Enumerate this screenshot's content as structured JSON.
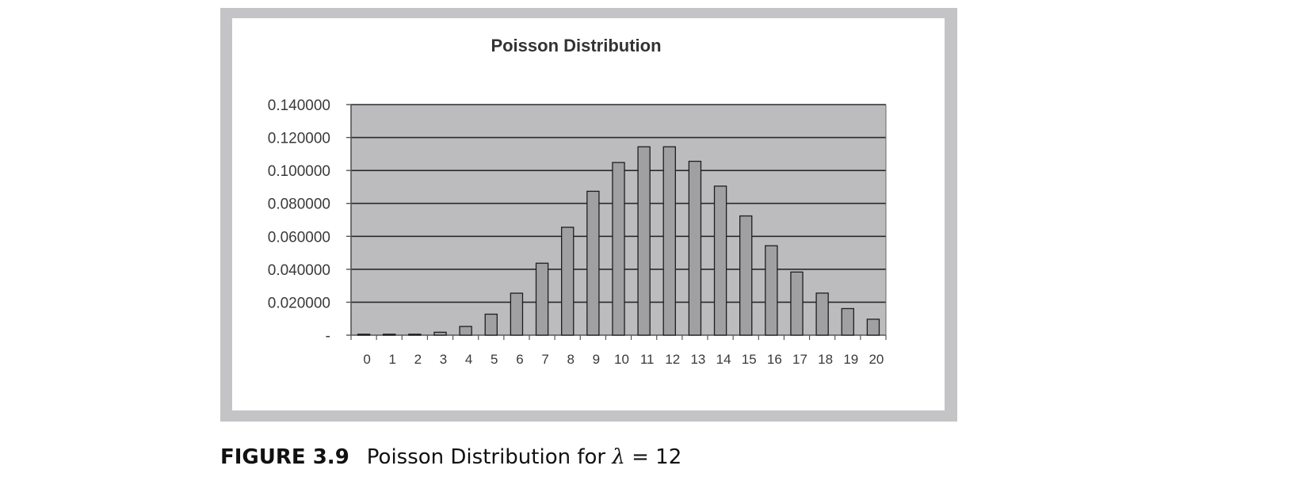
{
  "caption": {
    "label": "FIGURE 3.9",
    "text_before": "Poisson Distribution for ",
    "symbol": "λ",
    "text_after": " = 12"
  },
  "colors": {
    "plot_background": "#bcbcbe",
    "bar_fill": "#a0a0a2",
    "bar_stroke": "#1e1e1e",
    "gridline": "#2a2a2a",
    "frame": "#c4c4c6"
  },
  "chart_data": {
    "type": "bar",
    "title": "Poisson Distribution",
    "xlabel": "",
    "ylabel": "",
    "categories": [
      "0",
      "1",
      "2",
      "3",
      "4",
      "5",
      "6",
      "7",
      "8",
      "9",
      "10",
      "11",
      "12",
      "13",
      "14",
      "15",
      "16",
      "17",
      "18",
      "19",
      "20"
    ],
    "values": [
      6e-06,
      7.4e-05,
      0.000442,
      0.00177,
      0.005309,
      0.012741,
      0.025481,
      0.043682,
      0.065523,
      0.087364,
      0.104837,
      0.114368,
      0.114368,
      0.10557,
      0.090489,
      0.072391,
      0.054293,
      0.038325,
      0.02555,
      0.016137,
      0.009682
    ],
    "ylim": [
      0,
      0.14
    ],
    "yticks": [
      0,
      0.02,
      0.04,
      0.06,
      0.08,
      0.1,
      0.12,
      0.14
    ],
    "ytick_labels": [
      "-",
      "0.020000",
      "0.040000",
      "0.060000",
      "0.080000",
      "0.100000",
      "0.120000",
      "0.140000"
    ],
    "grid": true,
    "legend": "none"
  }
}
